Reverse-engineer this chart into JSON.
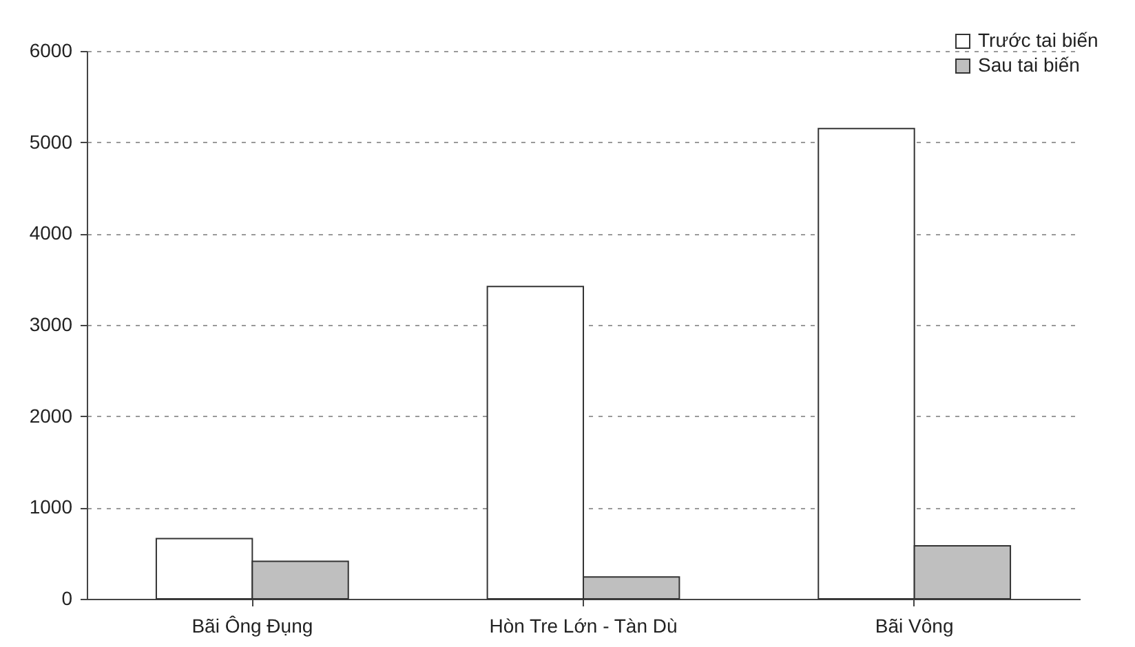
{
  "chart_data": {
    "type": "bar",
    "categories": [
      "Bãi Ông Đụng",
      "Hòn Tre Lớn - Tàn Dù",
      "Bãi Vông"
    ],
    "series": [
      {
        "name": "Trước tai biến",
        "color": "#ffffff",
        "values": [
          660,
          3420,
          5150
        ]
      },
      {
        "name": "Sau tai biến",
        "color": "#bfbfbf",
        "values": [
          410,
          240,
          580
        ]
      }
    ],
    "ylim": [
      0,
      6000
    ],
    "yticks": [
      0,
      1000,
      2000,
      3000,
      4000,
      5000,
      6000
    ],
    "grid": "y",
    "legend": "top right"
  }
}
